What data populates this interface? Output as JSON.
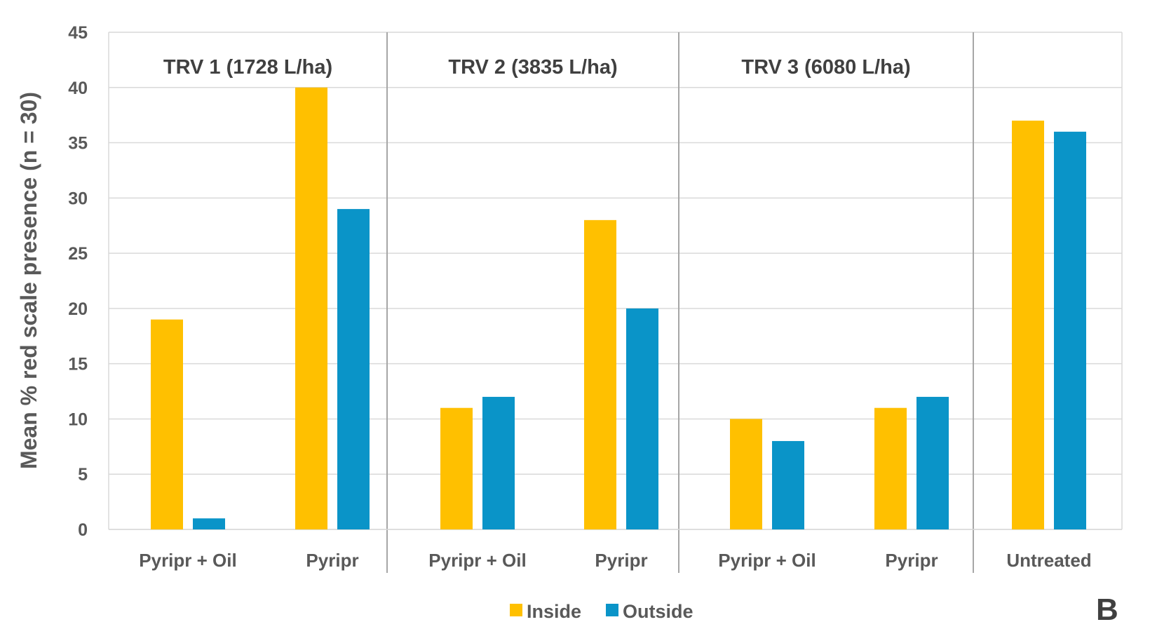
{
  "panel_label": "B",
  "chart_data": {
    "type": "bar",
    "ylabel": "Mean % red scale presence (n = 30)",
    "ylim": [
      0,
      45
    ],
    "yticks": [
      0,
      5,
      10,
      15,
      20,
      25,
      30,
      35,
      40,
      45
    ],
    "grid": true,
    "legend_position": "bottom",
    "groups": [
      {
        "label": "TRV 1 (1728 L/ha)",
        "categories": [
          "Pyripr + Oil",
          "Pyripr"
        ]
      },
      {
        "label": "TRV 2 (3835 L/ha)",
        "categories": [
          "Pyripr + Oil",
          "Pyripr"
        ]
      },
      {
        "label": "TRV 3 (6080 L/ha)",
        "categories": [
          "Pyripr + Oil",
          "Pyripr"
        ]
      },
      {
        "label": "",
        "categories": [
          "Untreated"
        ]
      }
    ],
    "series": [
      {
        "name": "Inside",
        "color": "#FFC000",
        "values": [
          19,
          40,
          11,
          28,
          10,
          11,
          37
        ]
      },
      {
        "name": "Outside",
        "color": "#0A94C8",
        "values": [
          1,
          29,
          12,
          20,
          8,
          12,
          36
        ]
      }
    ]
  }
}
